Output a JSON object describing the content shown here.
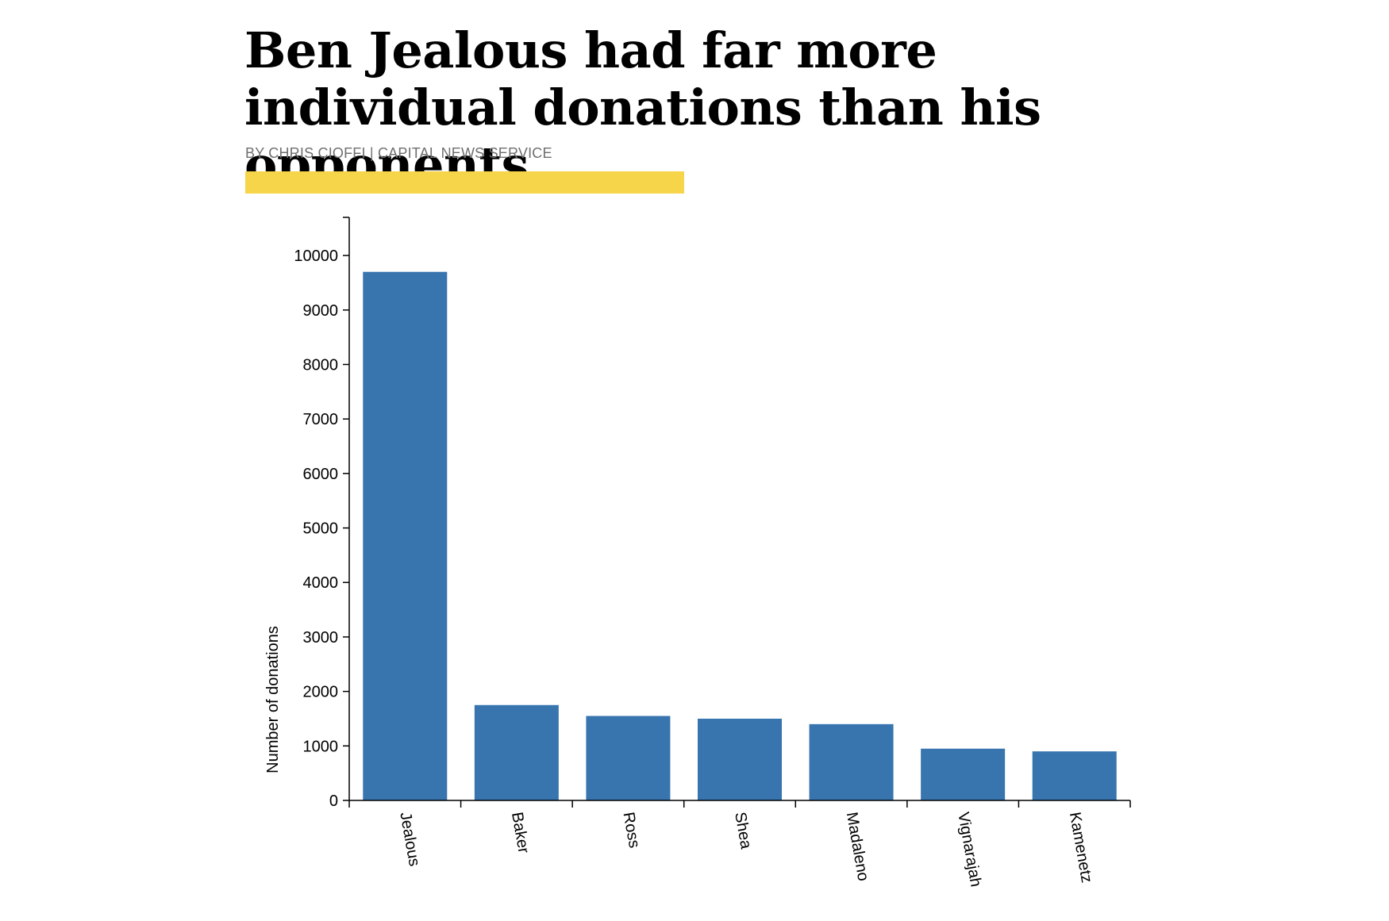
{
  "header": {
    "title": "Ben Jealous had far more individual donations than his opponents",
    "byline": "BY CHRIS CIOFFI | CAPITAL NEWS SERVICE"
  },
  "colors": {
    "bar": "#3874ae",
    "accent": "#f6d54a",
    "byline": "#6f6f6f"
  },
  "chart_data": {
    "type": "bar",
    "title": "",
    "xlabel": "",
    "ylabel": "Number of donations",
    "categories": [
      "Jealous",
      "Baker",
      "Ross",
      "Shea",
      "Madaleno",
      "Vignarajah",
      "Kamenetz"
    ],
    "values": [
      9700,
      1750,
      1550,
      1500,
      1400,
      950,
      900
    ],
    "ylim": [
      0,
      10700
    ],
    "yticks": [
      0,
      1000,
      2000,
      3000,
      4000,
      5000,
      6000,
      7000,
      8000,
      9000,
      10000
    ],
    "grid": false,
    "legend": "none"
  }
}
